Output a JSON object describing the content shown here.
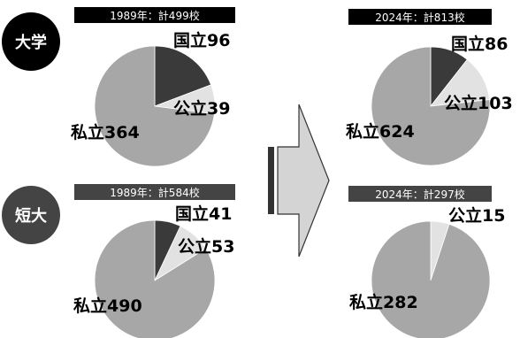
{
  "groups": [
    {
      "label": "大学",
      "style": "black"
    },
    {
      "label": "短大",
      "style": "tan"
    }
  ],
  "colors": {
    "national": "#3a3a3a",
    "public": "#e2e2e2",
    "private": "#a7a7a7"
  },
  "chart_data": [
    {
      "type": "pie",
      "title": "1989年：計499校",
      "slices": [
        {
          "label": "国立96",
          "value": 96,
          "color": "#3a3a3a"
        },
        {
          "label": "公立39",
          "value": 39,
          "color": "#e2e2e2"
        },
        {
          "label": "私立364",
          "value": 364,
          "color": "#a7a7a7"
        }
      ]
    },
    {
      "type": "pie",
      "title": "2024年：計813校",
      "slices": [
        {
          "label": "国立86",
          "value": 86,
          "color": "#3a3a3a"
        },
        {
          "label": "公立103",
          "value": 103,
          "color": "#e2e2e2"
        },
        {
          "label": "私立624",
          "value": 624,
          "color": "#a7a7a7"
        }
      ]
    },
    {
      "type": "pie",
      "title": "1989年：計584校",
      "slices": [
        {
          "label": "国立41",
          "value": 41,
          "color": "#3a3a3a"
        },
        {
          "label": "公立53",
          "value": 53,
          "color": "#e2e2e2"
        },
        {
          "label": "私立490",
          "value": 490,
          "color": "#a7a7a7"
        }
      ]
    },
    {
      "type": "pie",
      "title": "2024年：計297校",
      "slices": [
        {
          "label": "公立15",
          "value": 15,
          "color": "#e2e2e2"
        },
        {
          "label": "私立282",
          "value": 282,
          "color": "#a7a7a7"
        }
      ]
    }
  ]
}
